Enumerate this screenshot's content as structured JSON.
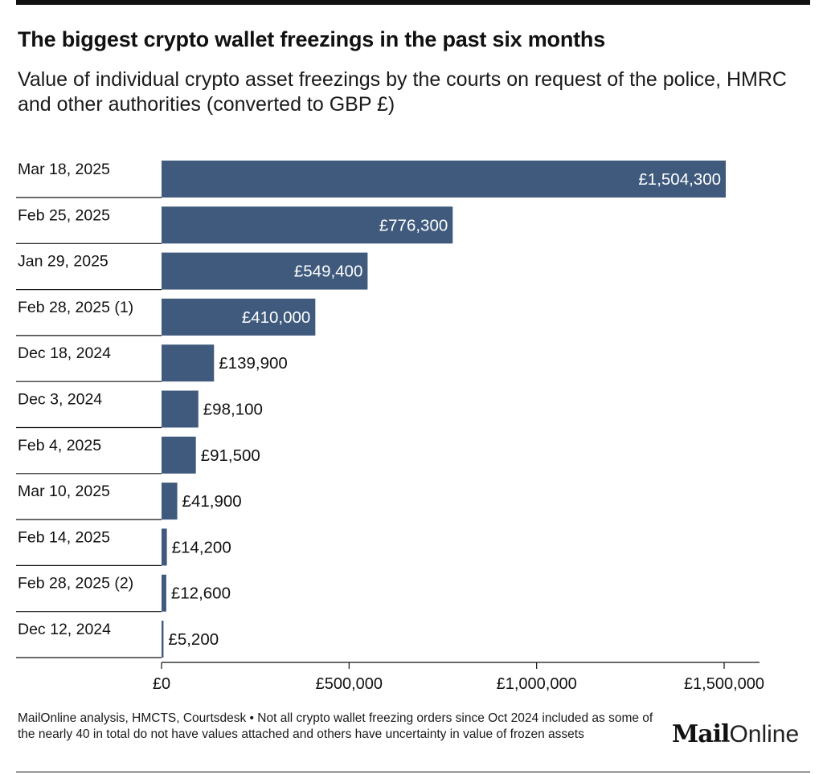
{
  "title": "The biggest crypto wallet freezings in the past six months",
  "subtitle": "Value of individual crypto asset freezings by the courts on request of the police, HMRC and other authorities (converted to GBP £)",
  "chart_data": {
    "type": "bar",
    "orientation": "horizontal",
    "categories": [
      "Mar 18, 2025",
      "Feb 25, 2025",
      "Jan 29, 2025",
      "Feb 28, 2025 (1)",
      "Dec 18, 2024",
      "Dec 3, 2024",
      "Feb 4, 2025",
      "Mar 10, 2025",
      "Feb 14, 2025",
      "Feb 28, 2025 (2)",
      "Dec 12, 2024"
    ],
    "values": [
      1504300,
      776300,
      549400,
      410000,
      139900,
      98100,
      91500,
      41900,
      14200,
      12600,
      5200
    ],
    "value_labels": [
      "£1,504,300",
      "£776,300",
      "£549,400",
      "£410,000",
      "£139,900",
      "£98,100",
      "£91,500",
      "£41,900",
      "£14,200",
      "£12,600",
      "£5,200"
    ],
    "xlim": [
      0,
      1600000
    ],
    "x_ticks": [
      0,
      500000,
      1000000,
      1500000
    ],
    "x_tick_labels": [
      "£0",
      "£500,000",
      "£1,000,000",
      "£1,500,000"
    ],
    "grid": false,
    "bar_color": "#3f5a7d"
  },
  "footer": {
    "note": "MailOnline analysis, HMCTS, Courtsdesk • Not all crypto wallet freezing orders since Oct 2024 included as some of the nearly 40 in total do not have values attached and others have uncertainty in value of frozen assets"
  },
  "brand": {
    "mail": "Mail",
    "online": "Online"
  }
}
